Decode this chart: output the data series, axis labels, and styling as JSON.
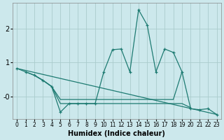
{
  "xlabel": "Humidex (Indice chaleur)",
  "bg_color": "#cce8ec",
  "grid_color": "#aacccc",
  "line_color": "#1e7b72",
  "xlim": [
    -0.5,
    23.5
  ],
  "ylim": [
    -0.65,
    2.75
  ],
  "xticks": [
    0,
    1,
    2,
    3,
    4,
    5,
    6,
    7,
    8,
    9,
    10,
    11,
    12,
    13,
    14,
    15,
    16,
    17,
    18,
    19,
    20,
    21,
    22,
    23
  ],
  "yticks": [
    0.0,
    1.0,
    2.0
  ],
  "ytick_labels": [
    "-0",
    "1",
    "2"
  ],
  "line_main": {
    "x": [
      0,
      1,
      2,
      3,
      4,
      5,
      6,
      7,
      8,
      9,
      10,
      11,
      12,
      13,
      14,
      15,
      16,
      17,
      18,
      19,
      20,
      21,
      22,
      23
    ],
    "y": [
      0.83,
      0.73,
      0.63,
      0.48,
      0.3,
      -0.45,
      -0.2,
      -0.2,
      -0.2,
      -0.2,
      0.73,
      1.38,
      1.4,
      0.73,
      2.55,
      2.1,
      0.73,
      1.4,
      1.3,
      0.73,
      -0.35,
      -0.38,
      -0.35,
      -0.52
    ]
  },
  "line_horiz1": {
    "x": [
      1,
      2,
      3,
      4,
      5,
      6,
      7,
      8,
      9,
      10,
      11,
      12,
      13,
      14,
      15,
      16,
      17,
      18,
      19
    ],
    "y": [
      0.73,
      0.63,
      0.48,
      0.3,
      -0.08,
      -0.08,
      -0.08,
      -0.08,
      -0.08,
      -0.08,
      -0.08,
      -0.08,
      -0.08,
      -0.08,
      -0.08,
      -0.08,
      -0.08,
      -0.08,
      0.73
    ]
  },
  "line_horiz2": {
    "x": [
      2,
      3,
      4,
      5,
      6,
      7,
      8,
      9,
      10,
      11,
      12,
      13,
      14,
      15,
      16,
      17,
      18,
      19,
      20
    ],
    "y": [
      0.63,
      0.48,
      0.3,
      -0.2,
      -0.2,
      -0.2,
      -0.2,
      -0.2,
      -0.2,
      -0.2,
      -0.2,
      -0.2,
      -0.2,
      -0.2,
      -0.2,
      -0.2,
      -0.2,
      -0.2,
      -0.32
    ]
  },
  "line_diag": {
    "x": [
      0,
      23
    ],
    "y": [
      0.83,
      -0.52
    ]
  }
}
